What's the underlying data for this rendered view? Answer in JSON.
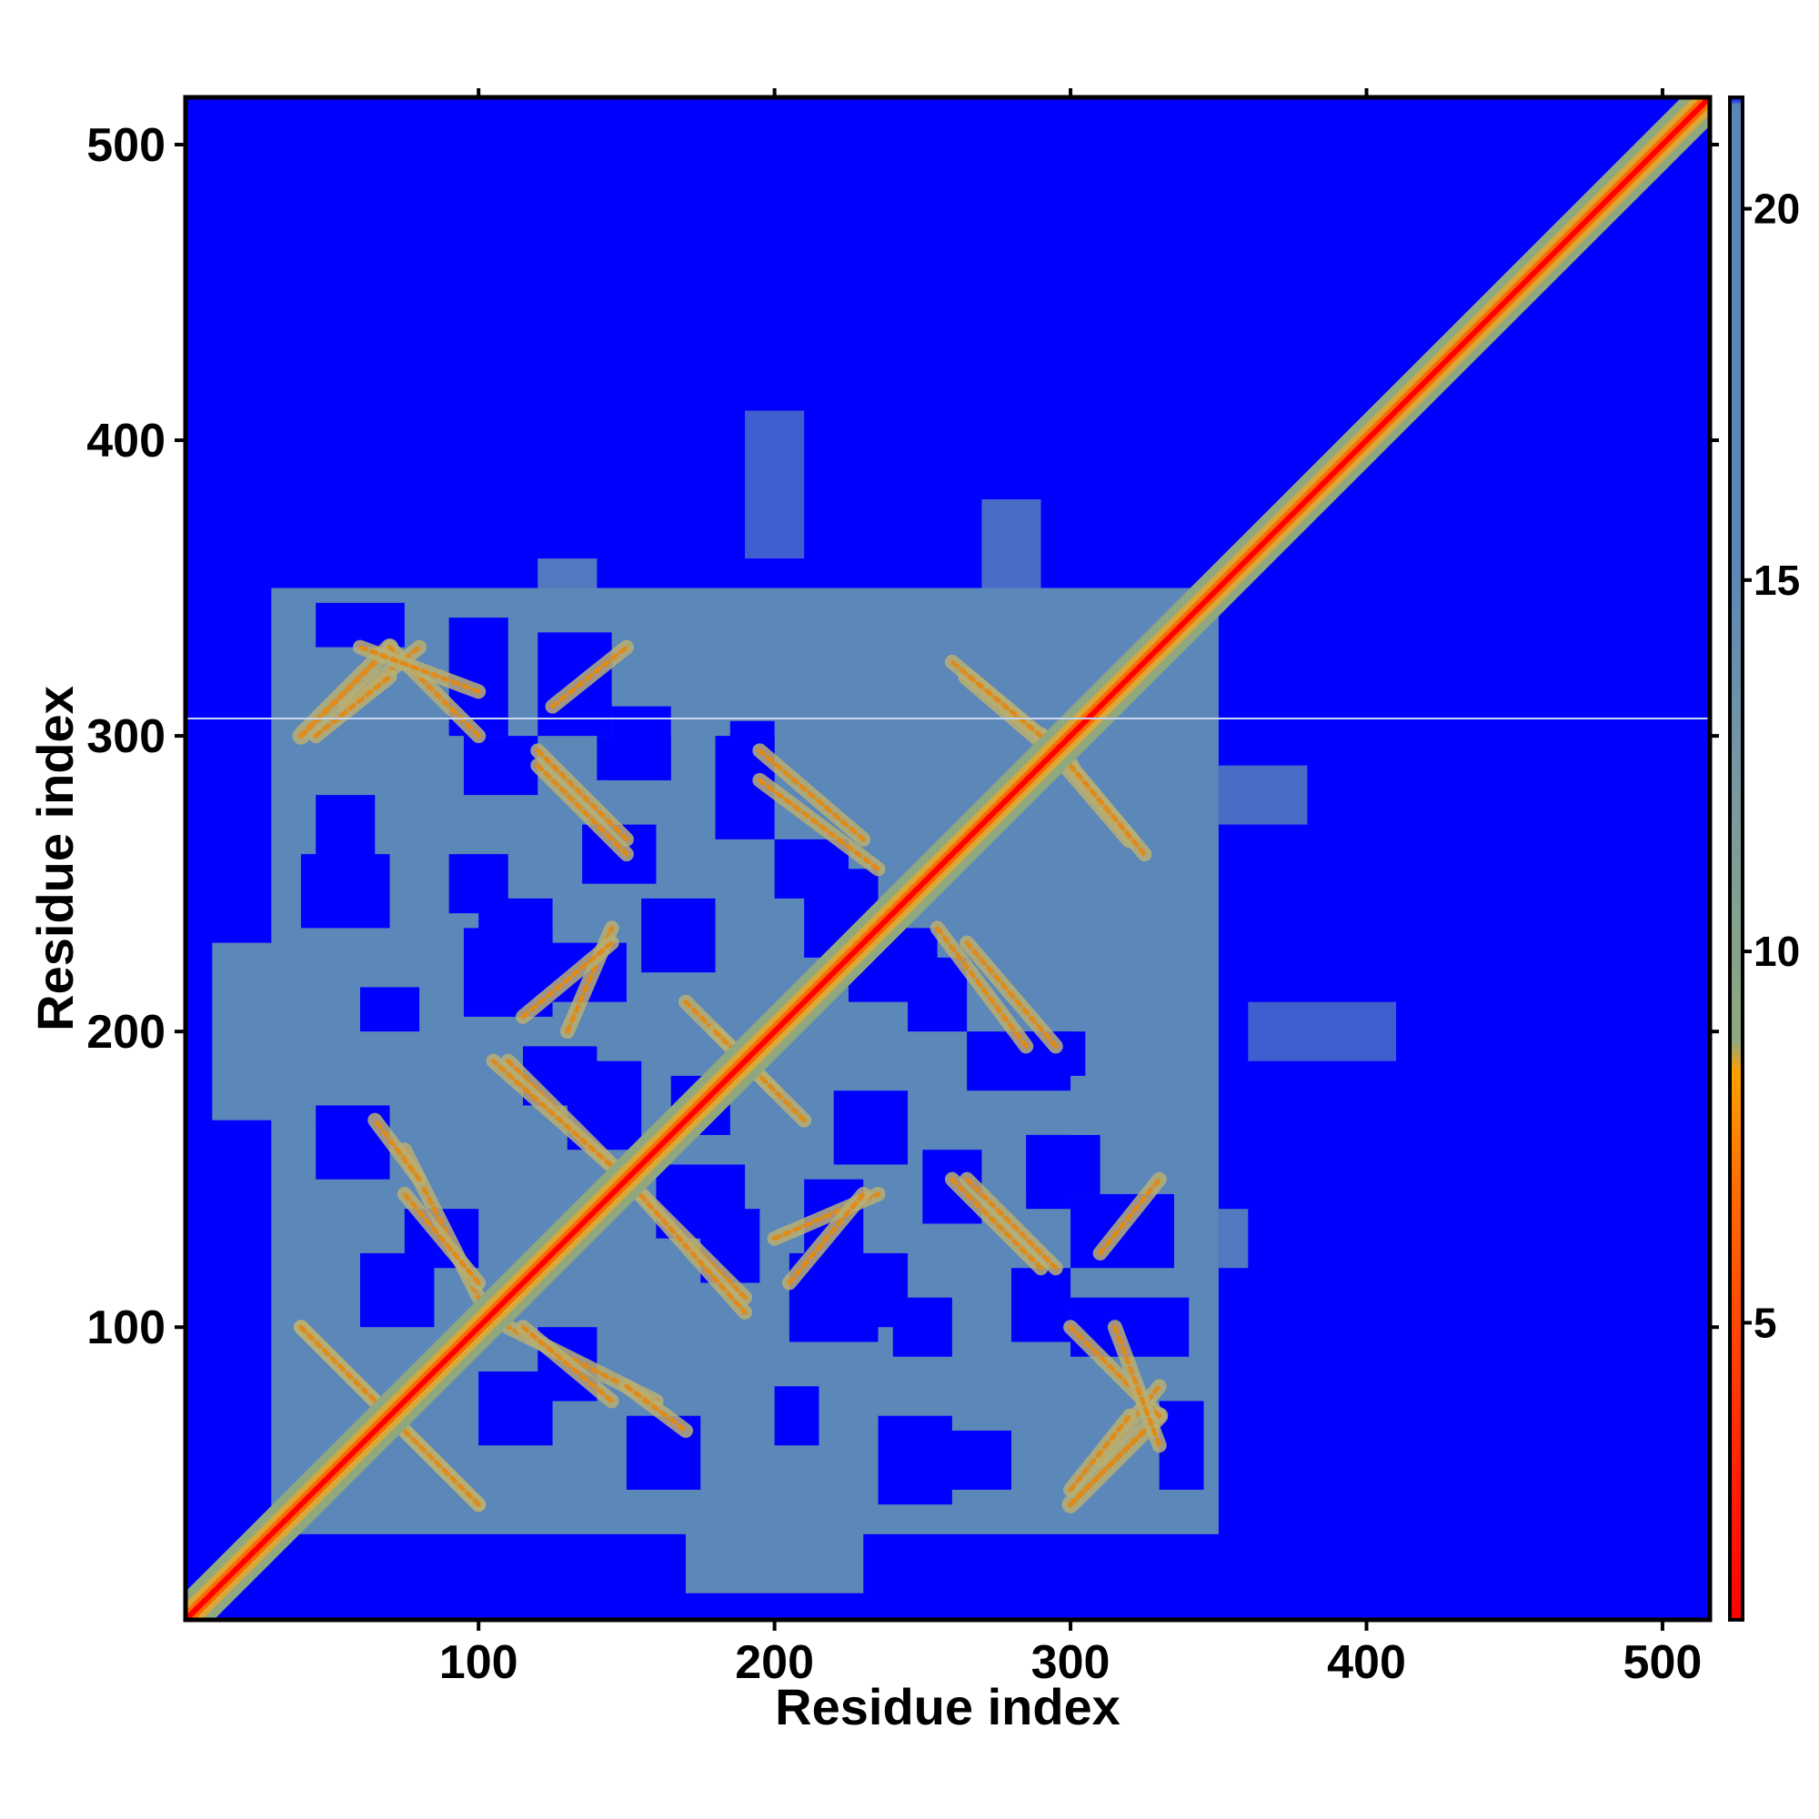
{
  "chart_data": {
    "type": "heatmap",
    "title": "",
    "xlabel": "Residue index",
    "ylabel": "Residue index",
    "xlim": [
      1,
      516
    ],
    "ylim": [
      1,
      516
    ],
    "x_ticks": [
      100,
      200,
      300,
      400,
      500
    ],
    "y_ticks": [
      100,
      200,
      300,
      400,
      500
    ],
    "colorbar": {
      "range": [
        1,
        21.5
      ],
      "ticks": [
        5,
        10,
        15,
        20
      ],
      "colors": {
        "low": "#ff0000",
        "mid_low": "#ff8c00",
        "mid": "#8fa87f",
        "high": "#5a86b8",
        "max": "#0000ff"
      }
    },
    "description_values": {
      "diagonal_distance": 1,
      "contact_band_distance": 6,
      "near_contact_distance": 12,
      "background_distance": 21.5
    },
    "grid": false,
    "legend": "colorbar-right"
  }
}
